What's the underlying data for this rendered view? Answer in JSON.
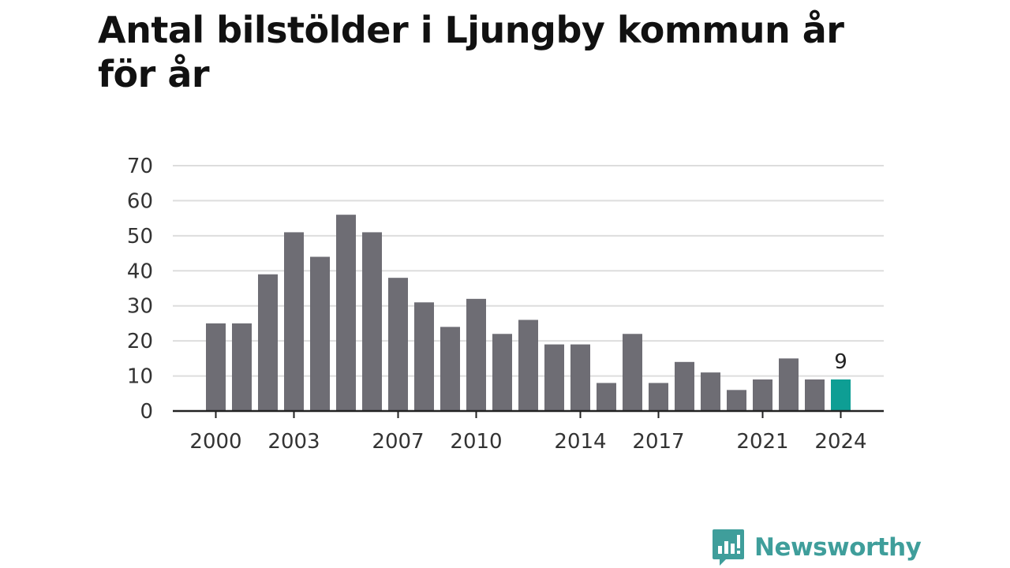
{
  "title": "Antal bilstölder i Ljungby kommun år för år",
  "brand": {
    "name": "Newsworthy",
    "logo_icon": "newsworthy-speech-bubble-bar-chart-icon",
    "color": "#3f9e9b"
  },
  "colors": {
    "bar": "#6e6d74",
    "highlight": "#0e9e94",
    "grid": "#dddddd",
    "axis": "#222222"
  },
  "chart_data": {
    "type": "bar",
    "title": "Antal bilstölder i Ljungby kommun år för år",
    "xlabel": "",
    "ylabel": "",
    "x": [
      2000,
      2001,
      2002,
      2003,
      2004,
      2005,
      2006,
      2007,
      2008,
      2009,
      2010,
      2011,
      2012,
      2013,
      2014,
      2015,
      2016,
      2017,
      2018,
      2019,
      2020,
      2021,
      2022,
      2023,
      2024
    ],
    "values": [
      25,
      25,
      39,
      51,
      44,
      56,
      51,
      38,
      31,
      24,
      32,
      22,
      26,
      19,
      19,
      8,
      22,
      8,
      14,
      11,
      6,
      9,
      15,
      9,
      9
    ],
    "x_tick_labels": [
      "2000",
      "2003",
      "2007",
      "2010",
      "2014",
      "2017",
      "2021",
      "2024"
    ],
    "y_ticks": [
      "0",
      "10",
      "20",
      "30",
      "40",
      "50",
      "60",
      "70"
    ],
    "ylim": [
      0,
      70
    ],
    "grid": true,
    "legend": "none",
    "highlight": {
      "x": 2024,
      "label": "9"
    }
  }
}
